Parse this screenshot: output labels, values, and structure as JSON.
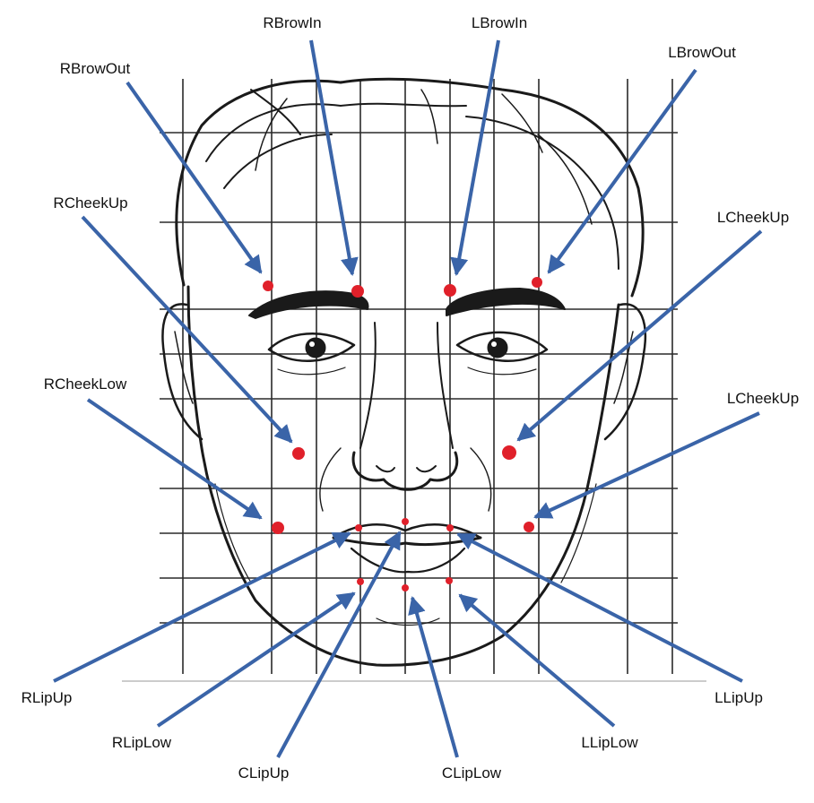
{
  "colors": {
    "marker": "#e0202a",
    "arrow": "#3a64a8",
    "sketch": "#1a1a1a",
    "grid": "#2a2a2a"
  },
  "labels": {
    "rbrowin": "RBrowIn",
    "lbrowin": "LBrowIn",
    "rbrowout": "RBrowOut",
    "lbrowout": "LBrowOut",
    "rcheekup": "RCheekUp",
    "lcheekup_upper": "LCheekUp",
    "rcheeklow": "RCheekLow",
    "lcheekup_lower": "LCheekUp",
    "rlipup": "RLipUp",
    "llipup": "LLipUp",
    "rliplow": "RLipLow",
    "lliplow": "LLipLow",
    "clipup": "CLipUp",
    "cliplow": "CLipLow"
  }
}
